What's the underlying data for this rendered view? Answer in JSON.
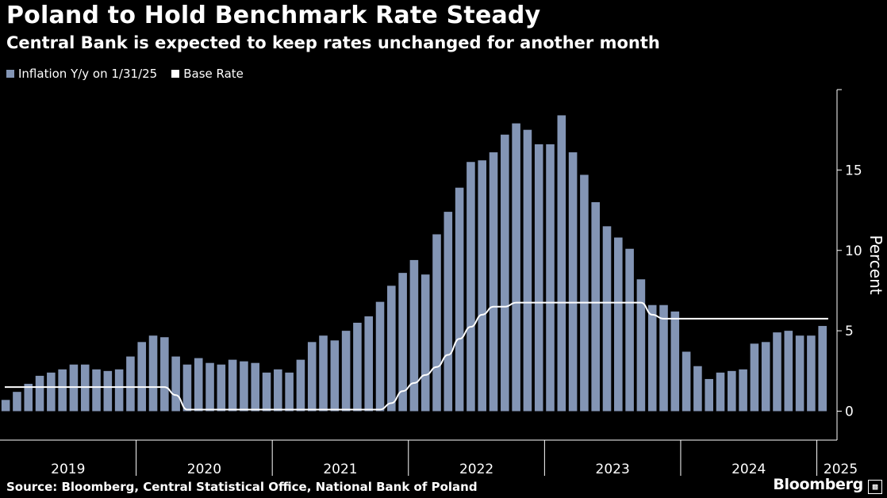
{
  "header": {
    "title": "Poland to Hold Benchmark Rate Steady",
    "subtitle": "Central Bank is expected to keep rates unchanged for another month"
  },
  "footer": {
    "source": "Source: Bloomberg, Central Statistical Office, National Bank of Poland",
    "brand": "Bloomberg",
    "brand_icon": "chart-bars-icon"
  },
  "colors": {
    "background": "#000000",
    "bars": "#8395b5",
    "rate_line": "#ffffff",
    "text": "#ffffff"
  },
  "chart_data": {
    "type": "bar",
    "ylabel": "Percent",
    "ylim": [
      -1.8,
      20
    ],
    "yticks": [
      0,
      5,
      10,
      15
    ],
    "grid": false,
    "legend_position": "top-left",
    "x_tick_labels": [
      "2019",
      "2020",
      "2021",
      "2022",
      "2023",
      "2024",
      "2025"
    ],
    "start_month": "2019-01",
    "end_month": "2025-01",
    "series": [
      {
        "name": "Inflation Y/y on 1/31/25",
        "kind": "bar",
        "values": [
          0.7,
          1.2,
          1.7,
          2.2,
          2.4,
          2.6,
          2.9,
          2.9,
          2.6,
          2.5,
          2.6,
          3.4,
          4.3,
          4.7,
          4.6,
          3.4,
          2.9,
          3.3,
          3.0,
          2.9,
          3.2,
          3.1,
          3.0,
          2.4,
          2.6,
          2.4,
          3.2,
          4.3,
          4.7,
          4.4,
          5.0,
          5.5,
          5.9,
          6.8,
          7.8,
          8.6,
          9.4,
          8.5,
          11.0,
          12.4,
          13.9,
          15.5,
          15.6,
          16.1,
          17.2,
          17.9,
          17.5,
          16.6,
          16.6,
          18.4,
          16.1,
          14.7,
          13.0,
          11.5,
          10.8,
          10.1,
          8.2,
          6.6,
          6.6,
          6.2,
          3.7,
          2.8,
          2.0,
          2.4,
          2.5,
          2.6,
          4.2,
          4.3,
          4.9,
          5.0,
          4.7,
          4.7,
          5.3
        ]
      },
      {
        "name": "Base Rate",
        "kind": "line",
        "points": [
          [
            "2019-01",
            1.5
          ],
          [
            "2020-03",
            1.5
          ],
          [
            "2020-04",
            1.0
          ],
          [
            "2020-05",
            0.1
          ],
          [
            "2021-10",
            0.1
          ],
          [
            "2021-11",
            0.5
          ],
          [
            "2021-12",
            1.25
          ],
          [
            "2022-01",
            1.75
          ],
          [
            "2022-02",
            2.25
          ],
          [
            "2022-03",
            2.75
          ],
          [
            "2022-04",
            3.5
          ],
          [
            "2022-05",
            4.5
          ],
          [
            "2022-06",
            5.25
          ],
          [
            "2022-07",
            6.0
          ],
          [
            "2022-08",
            6.5
          ],
          [
            "2022-09",
            6.5
          ],
          [
            "2022-10",
            6.75
          ],
          [
            "2023-09",
            6.75
          ],
          [
            "2023-10",
            6.0
          ],
          [
            "2023-11",
            5.75
          ],
          [
            "2025-02",
            5.75
          ]
        ]
      }
    ]
  }
}
